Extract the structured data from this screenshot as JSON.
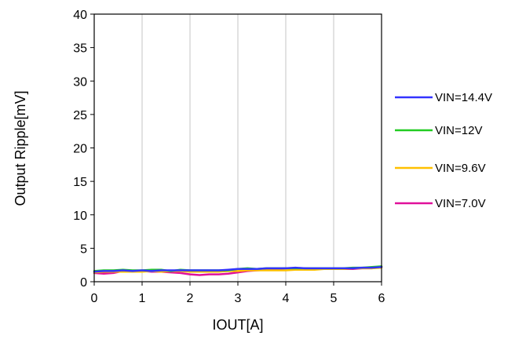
{
  "chart_data": {
    "type": "line",
    "title": "",
    "xlabel": "IOUT[A]",
    "ylabel": "Output Ripple[mV]",
    "xlim": [
      0,
      6
    ],
    "ylim": [
      0,
      40
    ],
    "x_ticks": [
      0,
      1,
      2,
      3,
      4,
      5,
      6
    ],
    "y_ticks": [
      0,
      5,
      10,
      15,
      20,
      25,
      30,
      35,
      40
    ],
    "grid": "vertical",
    "legend_position": "right",
    "x": [
      0,
      0.2,
      0.4,
      0.6,
      0.8,
      1.0,
      1.2,
      1.4,
      1.6,
      1.8,
      2.0,
      2.2,
      2.4,
      2.6,
      2.8,
      3.0,
      3.2,
      3.4,
      3.6,
      3.8,
      4.0,
      4.2,
      4.4,
      4.6,
      4.8,
      5.0,
      5.2,
      5.4,
      5.6,
      5.8,
      6.0
    ],
    "series": [
      {
        "name": "VIN=14.4V",
        "color": "#3333ff",
        "values": [
          1.5,
          1.6,
          1.6,
          1.7,
          1.6,
          1.7,
          1.6,
          1.7,
          1.7,
          1.7,
          1.7,
          1.7,
          1.7,
          1.7,
          1.8,
          1.9,
          1.9,
          1.9,
          2.0,
          2.0,
          2.0,
          2.1,
          2.0,
          2.0,
          2.0,
          2.0,
          2.0,
          2.0,
          2.1,
          2.1,
          2.2
        ]
      },
      {
        "name": "VIN=12V",
        "color": "#22cc22",
        "values": [
          1.6,
          1.7,
          1.7,
          1.8,
          1.7,
          1.7,
          1.8,
          1.8,
          1.6,
          1.8,
          1.7,
          1.7,
          1.7,
          1.7,
          1.7,
          1.9,
          2.0,
          1.9,
          2.0,
          2.0,
          2.0,
          2.0,
          2.0,
          2.0,
          2.0,
          2.0,
          2.0,
          2.1,
          2.1,
          2.2,
          2.3
        ]
      },
      {
        "name": "VIN=9.6V",
        "color": "#ffc000",
        "values": [
          1.4,
          1.5,
          1.5,
          1.5,
          1.5,
          1.5,
          1.6,
          1.5,
          1.6,
          1.6,
          1.5,
          1.5,
          1.5,
          1.5,
          1.6,
          1.6,
          1.7,
          1.7,
          1.7,
          1.7,
          1.7,
          1.8,
          1.8,
          1.8,
          1.9,
          1.9,
          1.9,
          2.0,
          2.0,
          2.0,
          2.1
        ]
      },
      {
        "name": "VIN=7.0V",
        "color": "#e0109a",
        "values": [
          1.3,
          1.2,
          1.3,
          1.6,
          1.5,
          1.6,
          1.5,
          1.5,
          1.4,
          1.3,
          1.1,
          1.0,
          1.1,
          1.1,
          1.2,
          1.4,
          1.6,
          1.7,
          1.8,
          1.9,
          2.0,
          2.0,
          2.0,
          1.9,
          1.9,
          1.9,
          1.9,
          1.9,
          2.0,
          2.0,
          2.2
        ]
      }
    ]
  }
}
